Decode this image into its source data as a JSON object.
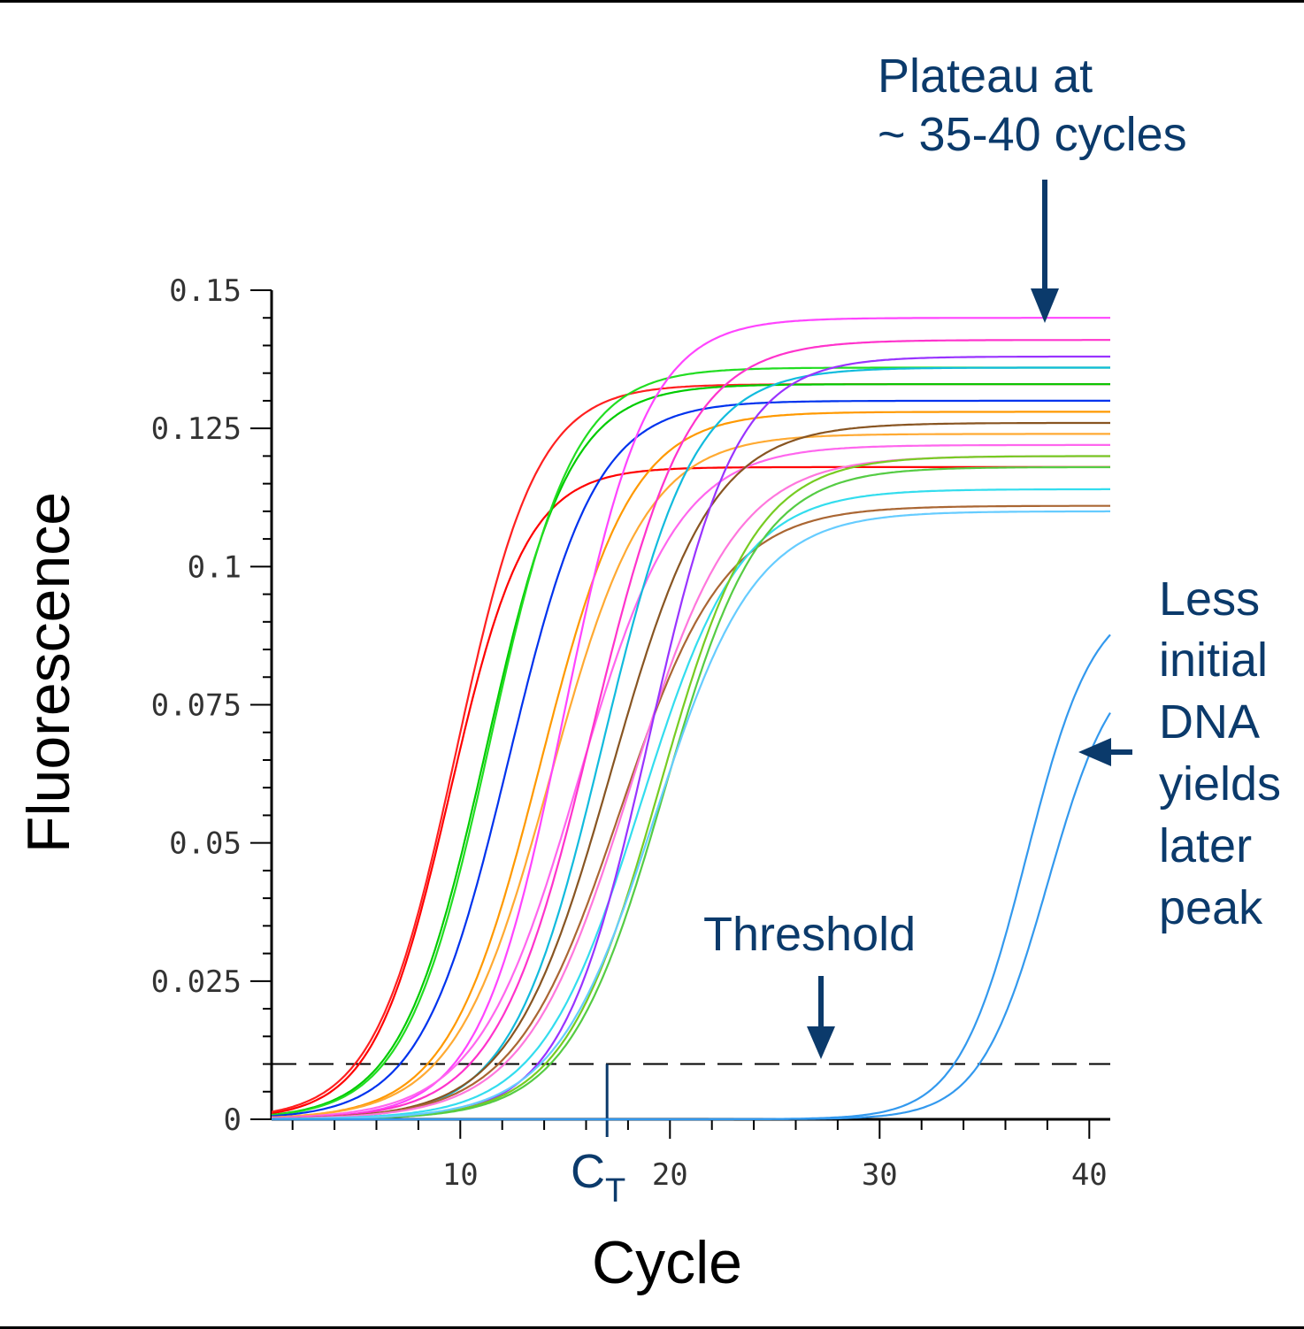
{
  "chart_data": {
    "type": "line",
    "xlabel": "Cycle",
    "ylabel": "Fluorescence",
    "xlim": [
      1,
      41
    ],
    "ylim": [
      0,
      0.15
    ],
    "x_ticks": [
      10,
      20,
      30,
      40
    ],
    "y_ticks": [
      0,
      0.025,
      0.05,
      0.075,
      0.1,
      0.125,
      0.15
    ],
    "y_tick_labels": [
      "0",
      "0.025",
      "0.05",
      "0.075",
      "0.1",
      "0.125",
      "0.15"
    ],
    "x_tick_labels": [
      "10",
      "20",
      "30",
      "40"
    ],
    "threshold": 0.01,
    "ct_label": "C",
    "ct_sub": "T",
    "ct_cycle": 17,
    "series": [
      {
        "color": "#ff0000",
        "midpoint": 9.5,
        "slope": 0.55,
        "plateau": 0.118
      },
      {
        "color": "#ff2020",
        "midpoint": 9.8,
        "slope": 0.52,
        "plateau": 0.133
      },
      {
        "color": "#00cc00",
        "midpoint": 11.2,
        "slope": 0.5,
        "plateau": 0.133
      },
      {
        "color": "#22dd22",
        "midpoint": 11.4,
        "slope": 0.5,
        "plateau": 0.136
      },
      {
        "color": "#0033ee",
        "midpoint": 12.3,
        "slope": 0.48,
        "plateau": 0.13
      },
      {
        "color": "#ff9900",
        "midpoint": 13.8,
        "slope": 0.46,
        "plateau": 0.128
      },
      {
        "color": "#ffaa33",
        "midpoint": 14.3,
        "slope": 0.44,
        "plateau": 0.124
      },
      {
        "color": "#ff44ff",
        "midpoint": 14.9,
        "slope": 0.5,
        "plateau": 0.145
      },
      {
        "color": "#ff66ee",
        "midpoint": 15.6,
        "slope": 0.42,
        "plateau": 0.122
      },
      {
        "color": "#ff33cc",
        "midpoint": 16.3,
        "slope": 0.44,
        "plateau": 0.141
      },
      {
        "color": "#11bbdd",
        "midpoint": 16.8,
        "slope": 0.46,
        "plateau": 0.136
      },
      {
        "color": "#885522",
        "midpoint": 17.2,
        "slope": 0.42,
        "plateau": 0.126
      },
      {
        "color": "#aa6633",
        "midpoint": 17.6,
        "slope": 0.4,
        "plateau": 0.111
      },
      {
        "color": "#ff77dd",
        "midpoint": 18.1,
        "slope": 0.4,
        "plateau": 0.12
      },
      {
        "color": "#33ddee",
        "midpoint": 18.6,
        "slope": 0.42,
        "plateau": 0.114
      },
      {
        "color": "#9933ff",
        "midpoint": 19.0,
        "slope": 0.48,
        "plateau": 0.138
      },
      {
        "color": "#77cc22",
        "midpoint": 19.5,
        "slope": 0.44,
        "plateau": 0.12
      },
      {
        "color": "#55cc44",
        "midpoint": 19.7,
        "slope": 0.44,
        "plateau": 0.118
      },
      {
        "color": "#66ccff",
        "midpoint": 19.3,
        "slope": 0.42,
        "plateau": 0.11
      },
      {
        "color": "#3399ee",
        "midpoint": 37.0,
        "slope": 0.62,
        "plateau": 0.095
      },
      {
        "color": "#3399ee",
        "midpoint": 38.0,
        "slope": 0.62,
        "plateau": 0.085
      }
    ]
  },
  "annotations": {
    "plateau": [
      "Plateau at",
      "~ 35-40 cycles"
    ],
    "threshold": "Threshold",
    "less_dna": [
      "Less",
      "initial",
      "DNA",
      "yields",
      "later",
      "peak"
    ]
  }
}
